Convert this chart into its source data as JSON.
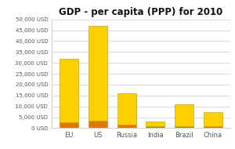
{
  "title": "GDP - per capita (PPP) for 2010",
  "categories": [
    "EU",
    "US",
    "Russia",
    "India",
    "Brazil",
    "China"
  ],
  "values": [
    32000,
    47000,
    16000,
    3000,
    11000,
    7500
  ],
  "bottom_values": [
    2500,
    3500,
    1500,
    800,
    900,
    700
  ],
  "bar_color_top": "#FFD000",
  "bar_color_bottom": "#E07800",
  "bar_color_outline": "#B89000",
  "ylim": [
    0,
    50000
  ],
  "yticks": [
    0,
    5000,
    10000,
    15000,
    20000,
    25000,
    30000,
    35000,
    40000,
    45000,
    50000
  ],
  "ytick_labels": [
    "0 USD",
    "5,000 USD",
    "10,000 USD",
    "15,000 USD",
    "20,000 USD",
    "25,000 USD",
    "30,000 USD",
    "35,000 USD",
    "40,000 USD",
    "45,000 USD",
    "50,000 USD"
  ],
  "background_color": "#FFFFFF",
  "plot_bg_color": "#FFFFFF",
  "grid_color": "#CCCCCC",
  "title_fontsize": 8.5,
  "tick_fontsize": 5.0,
  "xlabel_fontsize": 6.0,
  "bar_width": 0.65
}
